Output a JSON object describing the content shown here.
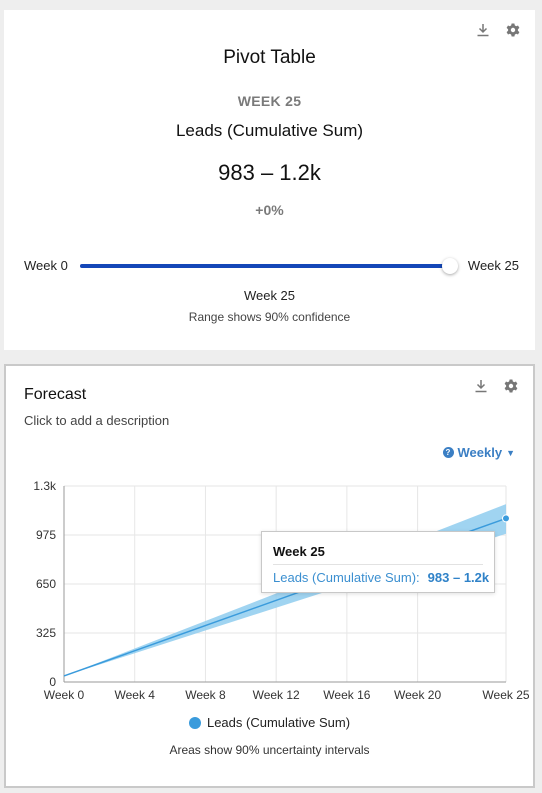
{
  "pivot": {
    "title": "Pivot Table",
    "week_label": "WEEK 25",
    "metric": "Leads (Cumulative Sum)",
    "value_range": "983 – 1.2k",
    "change": "+0%",
    "slider": {
      "min_label": "Week 0",
      "max_label": "Week 25",
      "min": 0,
      "max": 25,
      "value": 25
    },
    "selected_week": "Week 25",
    "note": "Range shows 90% confidence"
  },
  "forecast": {
    "title": "Forecast",
    "description_placeholder": "Click to add a description",
    "period": "Weekly",
    "tooltip": {
      "title": "Week 25",
      "series": "Leads (Cumulative Sum):",
      "value": "983 – 1.2k"
    },
    "legend_label": "Leads (Cumulative Sum)",
    "note": "Areas show 90% uncertainty intervals"
  },
  "icons": {
    "download": "download-icon",
    "settings": "gear-icon",
    "help": "help-icon",
    "dropdown": "caret-down-icon"
  },
  "colors": {
    "accent": "#1447b8",
    "series": "#3a9bdc",
    "band": "#8fcdee",
    "link": "#3b7fc4"
  },
  "chart_data": {
    "type": "line",
    "title": "",
    "xlabel": "",
    "ylabel": "",
    "x_ticks": [
      "Week 0",
      "Week 4",
      "Week 8",
      "Week 12",
      "Week 16",
      "Week 20",
      "Week 25"
    ],
    "x_tick_values": [
      0,
      4,
      8,
      12,
      16,
      20,
      25
    ],
    "y_ticks": [
      "0",
      "325",
      "650",
      "975",
      "1.3k"
    ],
    "y_tick_values": [
      0,
      325,
      650,
      975,
      1300
    ],
    "xlim": [
      0,
      25
    ],
    "ylim": [
      0,
      1300
    ],
    "grid": true,
    "legend_position": "bottom",
    "series": [
      {
        "name": "Leads (Cumulative Sum)",
        "x": [
          0,
          25
        ],
        "y": [
          40,
          1085
        ],
        "lower": [
          40,
          983
        ],
        "upper": [
          40,
          1180
        ]
      }
    ]
  }
}
